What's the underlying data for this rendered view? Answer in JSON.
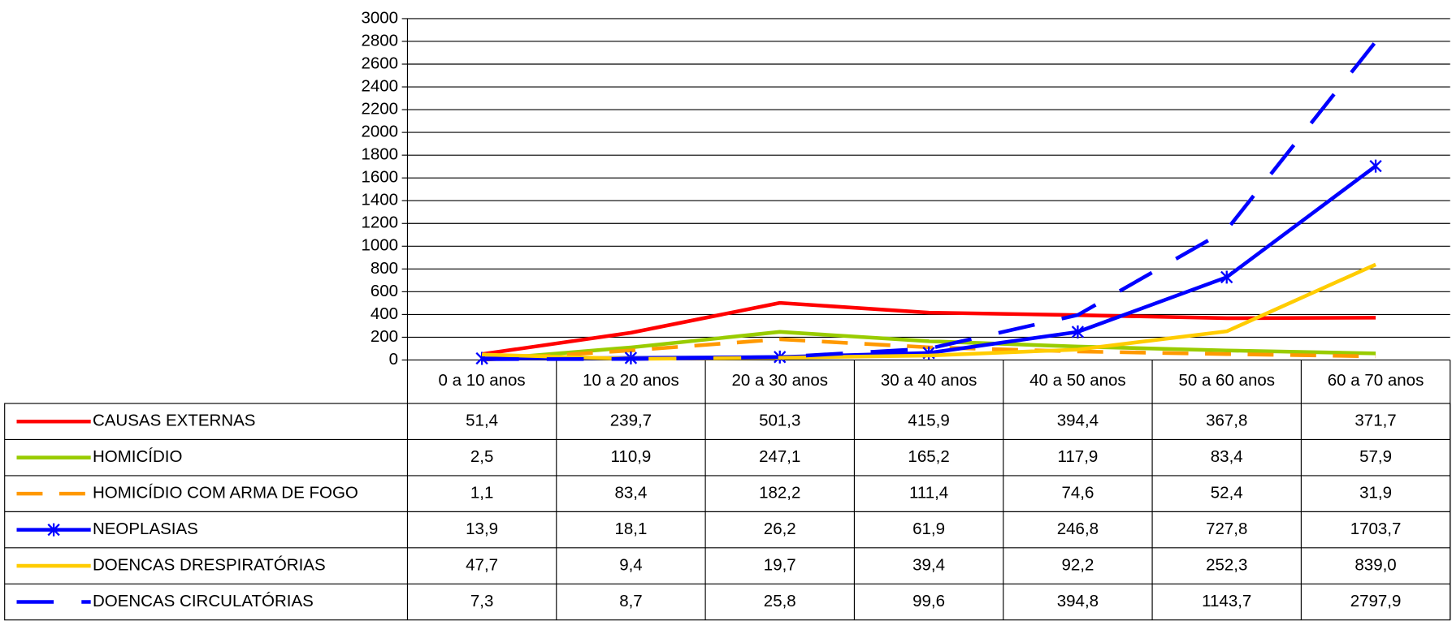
{
  "chart_data": {
    "type": "line",
    "categories": [
      "0 a 10 anos",
      "10 a 20 anos",
      "20 a 30 anos",
      "30 a 40 anos",
      "40 a 50 anos",
      "50 a 60 anos",
      "60 a 70 anos"
    ],
    "ylim": [
      0,
      3000
    ],
    "yticks": [
      0,
      200,
      400,
      600,
      800,
      1000,
      1200,
      1400,
      1600,
      1800,
      2000,
      2200,
      2400,
      2600,
      2800,
      3000
    ],
    "grid": true,
    "series": [
      {
        "name": "CAUSAS EXTERNAS",
        "color": "#ff0000",
        "line_style": "solid",
        "values": [
          51.4,
          239.7,
          501.3,
          415.9,
          394.4,
          367.8,
          371.7
        ],
        "value_labels": [
          "51,4",
          "239,7",
          "501,3",
          "415,9",
          "394,4",
          "367,8",
          "371,7"
        ]
      },
      {
        "name": "HOMICÍDIO",
        "color": "#99cc00",
        "line_style": "solid",
        "values": [
          2.5,
          110.9,
          247.1,
          165.2,
          117.9,
          83.4,
          57.9
        ],
        "value_labels": [
          "2,5",
          "110,9",
          "247,1",
          "165,2",
          "117,9",
          "83,4",
          "57,9"
        ]
      },
      {
        "name": "HOMICÍDIO COM ARMA DE FOGO",
        "color": "#ff9900",
        "line_style": "dash",
        "values": [
          1.1,
          83.4,
          182.2,
          111.4,
          74.6,
          52.4,
          31.9
        ],
        "value_labels": [
          "1,1",
          "83,4",
          "182,2",
          "111,4",
          "74,6",
          "52,4",
          "31,9"
        ]
      },
      {
        "name": "NEOPLASIAS",
        "color": "#0000ff",
        "line_style": "solid",
        "marker": "star",
        "values": [
          13.9,
          18.1,
          26.2,
          61.9,
          246.8,
          727.8,
          1703.7
        ],
        "value_labels": [
          "13,9",
          "18,1",
          "26,2",
          "61,9",
          "246,8",
          "727,8",
          "1703,7"
        ]
      },
      {
        "name": "DOENCAS DRESPIRATÓRIAS",
        "color": "#ffcc00",
        "line_style": "solid",
        "values": [
          47.7,
          9.4,
          19.7,
          39.4,
          92.2,
          252.3,
          839.0
        ],
        "value_labels": [
          "47,7",
          "9,4",
          "19,7",
          "39,4",
          "92,2",
          "252,3",
          "839,0"
        ]
      },
      {
        "name": "DOENCAS  CIRCULATÓRIAS",
        "color": "#0000ff",
        "line_style": "long-dash",
        "values": [
          7.3,
          8.7,
          25.8,
          99.6,
          394.8,
          1143.7,
          2797.9
        ],
        "value_labels": [
          "7,3",
          "8,7",
          "25,8",
          "99,6",
          "394,8",
          "1143,7",
          "2797,9"
        ]
      }
    ]
  }
}
